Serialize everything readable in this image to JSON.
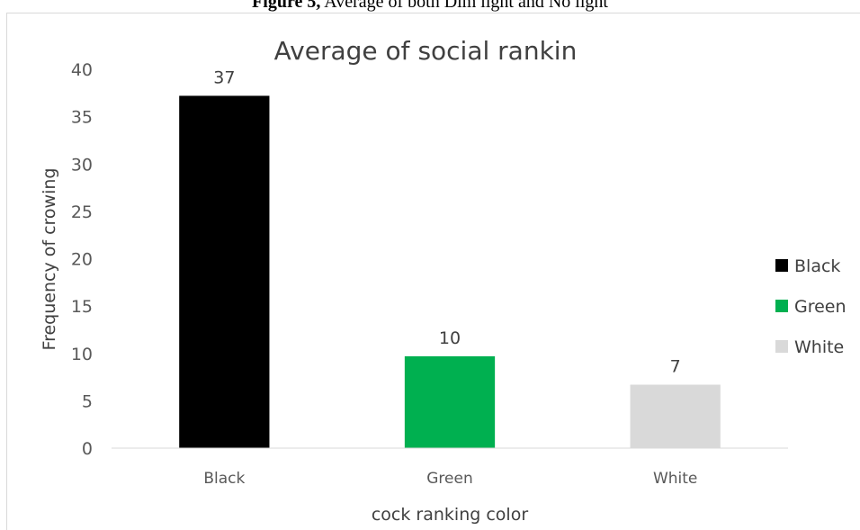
{
  "figure_caption": {
    "label": "Figure 5,",
    "text": "Average of both Dim light and No light"
  },
  "chart_data": {
    "type": "bar",
    "title": "Average of social rankin",
    "xlabel": "cock ranking color",
    "ylabel": "Frequency of crowing",
    "categories": [
      "Black",
      "Green",
      "White"
    ],
    "values": [
      37.2,
      9.7,
      6.7
    ],
    "data_labels": [
      "37",
      "10",
      "7"
    ],
    "colors": [
      "#000000",
      "#00b050",
      "#d9d9d9"
    ],
    "ylim": [
      0,
      40
    ],
    "yticks": [
      0,
      5,
      10,
      15,
      20,
      25,
      30,
      35,
      40
    ],
    "grid": false,
    "legend_position": "right",
    "legend": [
      "Black",
      "Green",
      "White"
    ]
  }
}
